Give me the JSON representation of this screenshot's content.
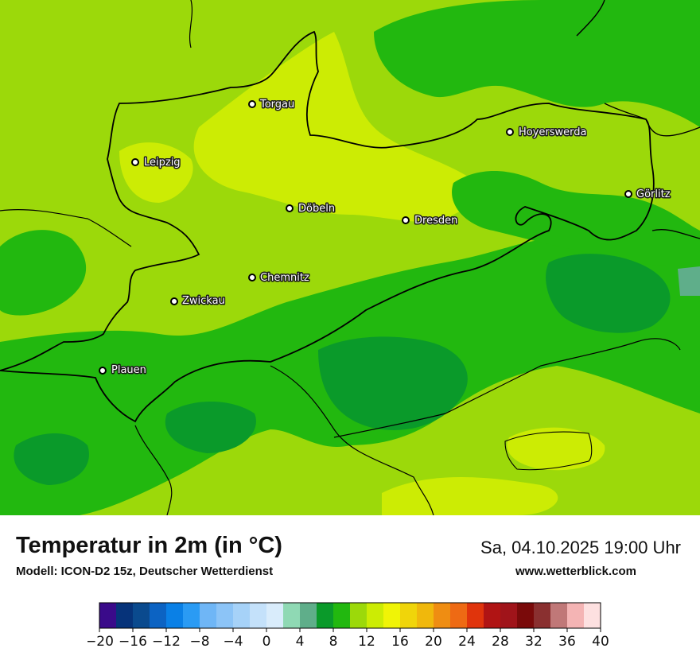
{
  "title": "Temperatur in 2m (in °C)",
  "model": "Modell: ICON-D2 15z, Deutscher Wetterdienst",
  "datetime": "Sa, 04.10.2025 19:00 Uhr",
  "website": "www.wetterblick.com",
  "cities": [
    "Torgau",
    "Leipzig",
    "Hoyerswerda",
    "Görlitz",
    "Döbeln",
    "Dresden",
    "Chemnitz",
    "Zwickau",
    "Plauen"
  ],
  "legend": {
    "min": -20,
    "max": 40,
    "tick_labels": [
      "−20",
      "−16",
      "−12",
      "−8",
      "−4",
      "0",
      "4",
      "8",
      "12",
      "16",
      "20",
      "24",
      "28",
      "32",
      "36",
      "40"
    ],
    "colors": [
      "#3a0a8a",
      "#06337a",
      "#0a4a8e",
      "#0c63c3",
      "#0a80e6",
      "#2a9bf4",
      "#6fb6f6",
      "#8cc4f7",
      "#a6d2f8",
      "#c4e1fa",
      "#d9ecfb",
      "#8fd9b4",
      "#5fae8a",
      "#0a9a2a",
      "#22b80f",
      "#9cd90a",
      "#ccec04",
      "#f0f406",
      "#f0d50a",
      "#f0b80c",
      "#ef8d12",
      "#ee6a14",
      "#e0340c",
      "#b01414",
      "#a0141a",
      "#7a0a0a",
      "#8a3030",
      "#c07878",
      "#f4b4b4",
      "#fde0e0"
    ]
  }
}
